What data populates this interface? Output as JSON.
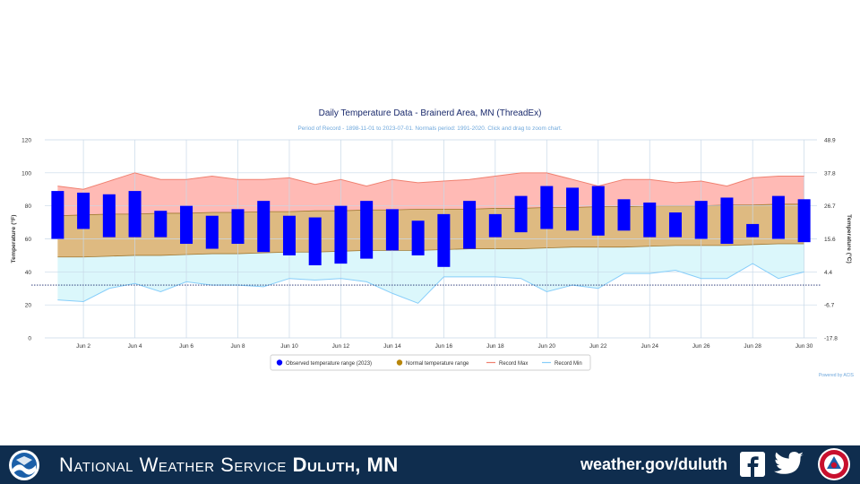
{
  "footer": {
    "title_prefix": "National Weather Service",
    "title_office": "Duluth, MN",
    "site": "weather.gov/duluth",
    "icons": [
      "noaa-logo-icon",
      "facebook-icon",
      "twitter-icon",
      "nws-logo-icon"
    ]
  },
  "colors": {
    "observed": "#0000ff",
    "normal": "#b8860b",
    "record_max": "#f08070",
    "record_min": "#87cefa",
    "footer_bg": "#0f2d4e"
  },
  "chart_data": {
    "type": "bar",
    "title": "Daily Temperature Data - Brainerd Area, MN (ThreadEx)",
    "subtitle": "Period of Record - 1898-11-01 to 2023-07-01. Normals period: 1991-2020. Click and drag to zoom chart.",
    "ylabel": "Temperature (°F)",
    "ylabel_right": "Temperature (°C)",
    "ylim": [
      0,
      120
    ],
    "yticks": [
      0,
      20,
      40,
      60,
      80,
      100,
      120
    ],
    "yticks_right": [
      "-17.8",
      "-6.7",
      "4.4",
      "15.6",
      "26.7",
      "37.8",
      "48.9"
    ],
    "xlim": [
      1,
      30
    ],
    "x_tick_positions": [
      2,
      4,
      6,
      8,
      10,
      12,
      14,
      16,
      18,
      20,
      22,
      24,
      26,
      28,
      30
    ],
    "x_tick_labels": [
      "Jun 2",
      "Jun 4",
      "Jun 6",
      "Jun 8",
      "Jun 10",
      "Jun 12",
      "Jun 14",
      "Jun 16",
      "Jun 18",
      "Jun 20",
      "Jun 22",
      "Jun 24",
      "Jun 26",
      "Jun 28",
      "Jun 30"
    ],
    "freeze_line": 32,
    "days": [
      1,
      2,
      3,
      4,
      5,
      6,
      7,
      8,
      9,
      10,
      11,
      12,
      13,
      14,
      15,
      16,
      17,
      18,
      19,
      20,
      21,
      22,
      23,
      24,
      25,
      26,
      27,
      28,
      29,
      30
    ],
    "series": [
      {
        "name": "Observed temperature range (2023)",
        "low": [
          60,
          66,
          61,
          61,
          61,
          57,
          54,
          57,
          52,
          50,
          44,
          45,
          48,
          53,
          50,
          43,
          54,
          61,
          64,
          66,
          65,
          62,
          65,
          61,
          61,
          60,
          57,
          61,
          60,
          58
        ],
        "high": [
          89,
          88,
          87,
          89,
          77,
          80,
          74,
          78,
          83,
          74,
          73,
          80,
          83,
          78,
          71,
          75,
          83,
          75,
          86,
          92,
          91,
          92,
          84,
          82,
          76,
          83,
          85,
          69,
          86,
          84
        ]
      },
      {
        "name": "Normal temperature range",
        "low": [
          49,
          49,
          49.5,
          50,
          50,
          50.5,
          51,
          51,
          51.5,
          52,
          52,
          52.5,
          53,
          53,
          53,
          53.5,
          54,
          54,
          54,
          54.5,
          55,
          55,
          55,
          55.5,
          56,
          56,
          56,
          56.5,
          57,
          57
        ],
        "high": [
          74,
          74.5,
          75,
          75,
          75.5,
          75.5,
          76,
          76,
          76.5,
          76.5,
          77,
          77,
          77.5,
          77.5,
          78,
          78,
          78,
          78.5,
          78.5,
          79,
          79,
          79.5,
          79.5,
          80,
          80,
          80,
          80.5,
          80.5,
          81,
          81
        ]
      },
      {
        "name": "Record Max",
        "values": [
          92,
          90,
          95,
          100,
          96,
          96,
          98,
          96,
          96,
          97,
          93,
          96,
          92,
          96,
          94,
          95,
          96,
          98,
          100,
          100,
          96,
          92,
          96,
          96,
          94,
          95,
          92,
          97,
          98,
          98
        ]
      },
      {
        "name": "Record Min",
        "values": [
          23,
          22,
          30,
          33,
          28,
          34,
          32,
          32,
          31,
          36,
          35,
          36,
          34,
          27,
          21,
          37,
          37,
          37,
          36,
          28,
          32,
          30,
          39,
          39,
          41,
          36,
          36,
          45,
          36,
          40
        ]
      }
    ],
    "legend_position": "bottom",
    "credit": "Powered by ACIS",
    "grid": true
  }
}
